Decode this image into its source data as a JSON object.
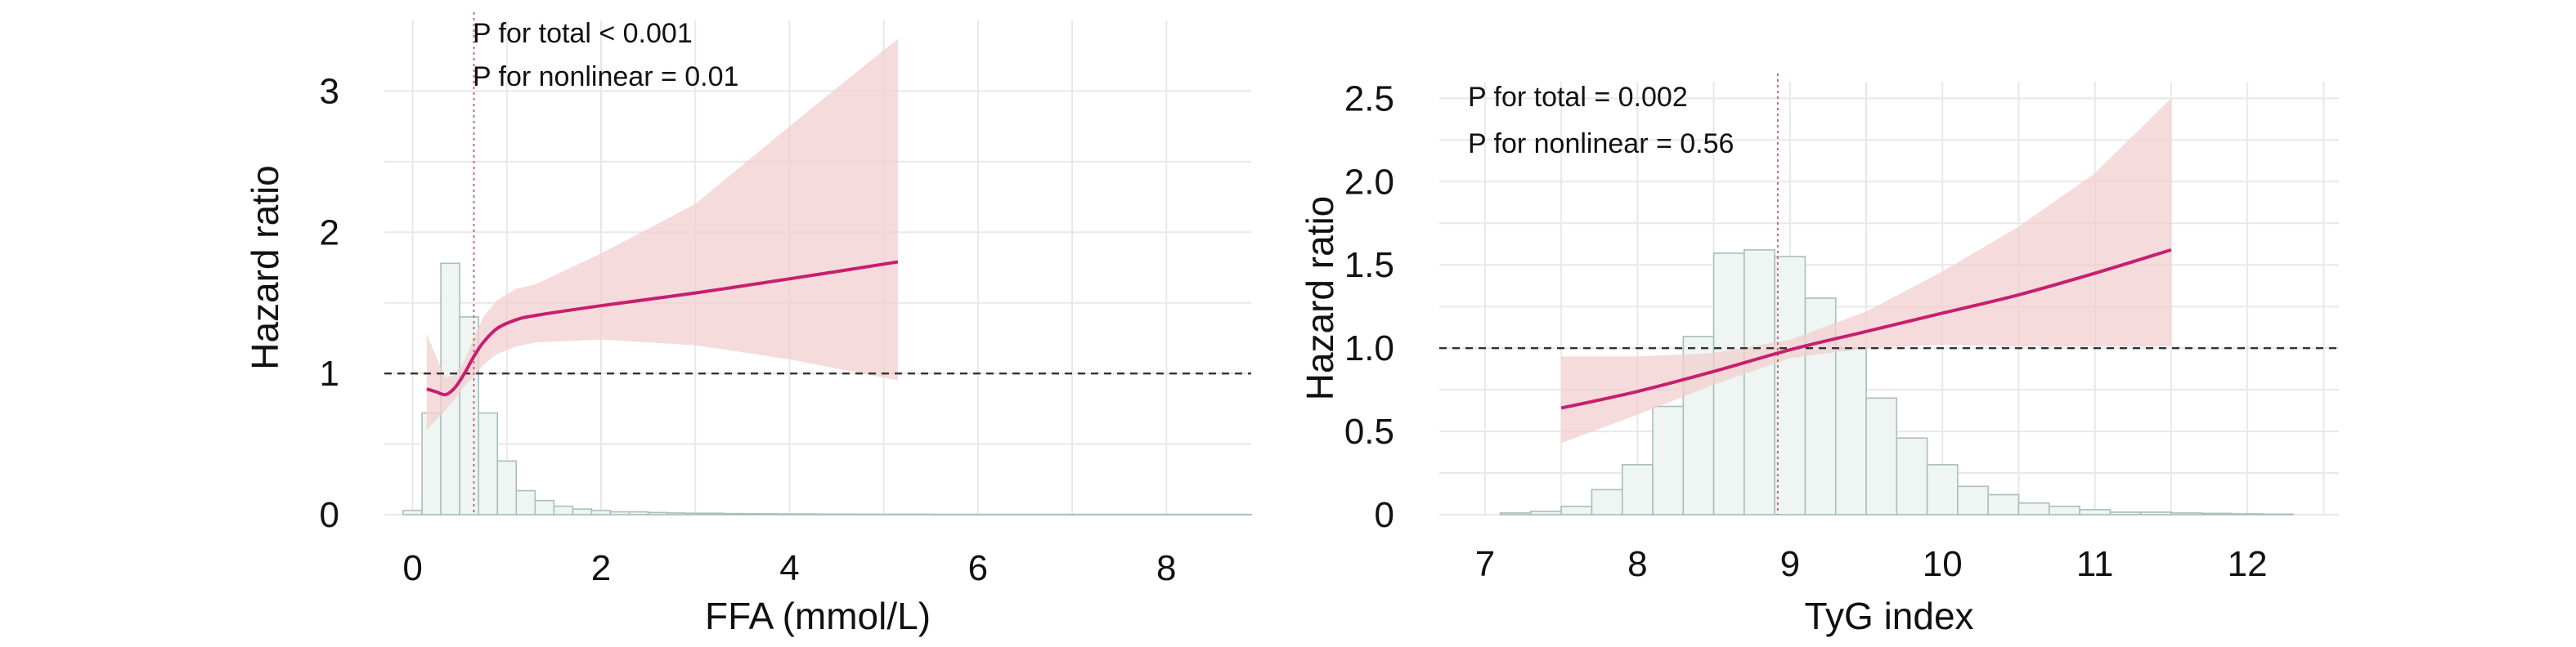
{
  "chart_data": [
    {
      "type": "line",
      "xlabel": "FFA (mmol/L)",
      "ylabel": "Hazard ratio",
      "xlim": [
        -0.3,
        8.9
      ],
      "ylim": [
        0,
        3.5
      ],
      "xticks": [
        "0",
        "2",
        "4",
        "6",
        "8"
      ],
      "xtick_values": [
        0,
        2,
        4,
        6,
        8
      ],
      "yticks": [
        "0",
        "1",
        "2",
        "3"
      ],
      "ytick_values": [
        0,
        1,
        2,
        3
      ],
      "reference_hr": 1,
      "reference_x": 0.65,
      "annotations": [
        "P for total < 0.001",
        "P for nonlinear = 0.01"
      ],
      "grid": true,
      "hr_curve": {
        "x": [
          0.15,
          0.25,
          0.35,
          0.45,
          0.55,
          0.65,
          0.75,
          0.9,
          1.1,
          1.3,
          2.0,
          3.0,
          4.0,
          5.15
        ],
        "hr": [
          0.89,
          0.87,
          0.85,
          0.9,
          1.0,
          1.12,
          1.22,
          1.32,
          1.38,
          1.41,
          1.48,
          1.57,
          1.67,
          1.79
        ],
        "lower": [
          0.6,
          0.67,
          0.74,
          0.82,
          0.91,
          0.98,
          1.06,
          1.14,
          1.19,
          1.22,
          1.24,
          1.2,
          1.1,
          0.95
        ],
        "upper": [
          1.28,
          1.12,
          0.97,
          0.99,
          1.09,
          1.25,
          1.4,
          1.52,
          1.6,
          1.63,
          1.85,
          2.2,
          2.75,
          3.37
        ]
      },
      "histogram": {
        "bin_width": 0.2,
        "bin_start": -0.1,
        "heights": [
          0.03,
          0.72,
          1.78,
          1.4,
          0.72,
          0.38,
          0.17,
          0.1,
          0.06,
          0.04,
          0.03,
          0.02,
          0.02,
          0.015,
          0.012,
          0.01,
          0.01,
          0.008,
          0.007,
          0.006,
          0.005,
          0.005,
          0.004,
          0.004,
          0.003,
          0.003,
          0.003,
          0.003,
          0.002,
          0.002,
          0.002,
          0.002,
          0.002,
          0.002,
          0.002,
          0.002,
          0.002,
          0.002,
          0.002,
          0.002,
          0.002,
          0.002,
          0.002,
          0.002,
          0.002
        ]
      }
    },
    {
      "type": "line",
      "xlabel": "TyG index",
      "ylabel": "Hazard ratio",
      "xlim": [
        6.7,
        12.6
      ],
      "ylim": [
        0,
        2.6
      ],
      "xticks": [
        "7",
        "8",
        "9",
        "10",
        "11",
        "12"
      ],
      "xtick_values": [
        7,
        8,
        9,
        10,
        11,
        12
      ],
      "yticks": [
        "0",
        "0.5",
        "1.0",
        "1.5",
        "2.0",
        "2.5"
      ],
      "ytick_values": [
        0,
        0.5,
        1.0,
        1.5,
        2.0,
        2.5
      ],
      "reference_hr": 1,
      "reference_x": 8.92,
      "annotations": [
        "P for total = 0.002",
        "P for nonlinear = 0.56"
      ],
      "grid": true,
      "hr_curve": {
        "x": [
          7.5,
          8.0,
          8.5,
          9.0,
          9.5,
          10.0,
          10.5,
          11.0,
          11.5
        ],
        "hr": [
          0.64,
          0.74,
          0.86,
          0.99,
          1.1,
          1.21,
          1.32,
          1.45,
          1.59
        ],
        "lower": [
          0.43,
          0.6,
          0.78,
          0.94,
          1.0,
          1.02,
          1.01,
          1.01,
          1.01
        ],
        "upper": [
          0.95,
          0.95,
          0.97,
          1.05,
          1.22,
          1.46,
          1.73,
          2.05,
          2.5
        ]
      },
      "histogram": {
        "bin_width": 0.2,
        "bin_start": 7.1,
        "heights": [
          0.01,
          0.02,
          0.05,
          0.15,
          0.3,
          0.65,
          1.07,
          1.57,
          1.59,
          1.55,
          1.3,
          1.0,
          0.7,
          0.46,
          0.3,
          0.17,
          0.12,
          0.07,
          0.05,
          0.03,
          0.015,
          0.015,
          0.01,
          0.008,
          0.005,
          0.003
        ]
      }
    }
  ]
}
